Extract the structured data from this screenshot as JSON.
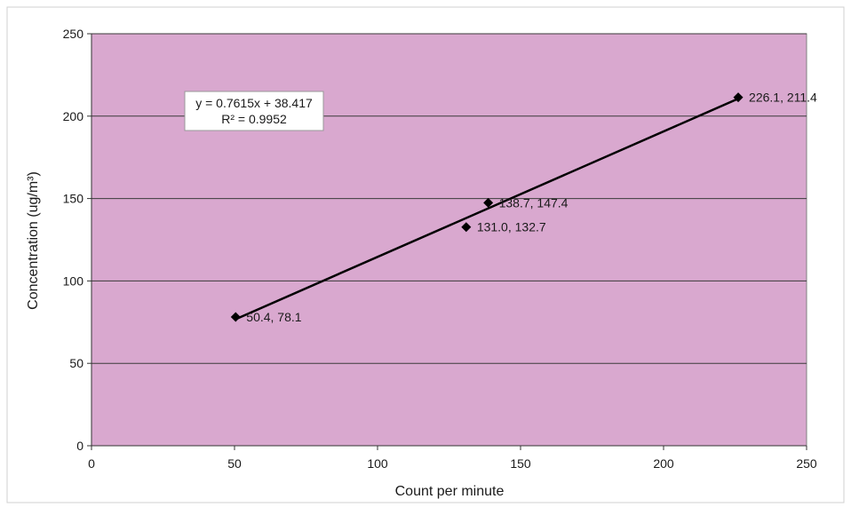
{
  "chart_data": {
    "type": "scatter",
    "title": "",
    "xlabel": "Count per minute",
    "ylabel": "Concentration (ug/m³)",
    "xlim": [
      0,
      250
    ],
    "ylim": [
      0,
      250
    ],
    "x_ticks": [
      0,
      50,
      100,
      150,
      200,
      250
    ],
    "y_ticks": [
      0,
      50,
      100,
      150,
      200,
      250
    ],
    "grid": "horizontal",
    "legend": "none",
    "plot_background": "#d9a8cf",
    "marker_color": "#000000",
    "series": [
      {
        "points": [
          {
            "x": 50.4,
            "y": 78.1,
            "label": "50.4, 78.1"
          },
          {
            "x": 131.0,
            "y": 132.7,
            "label": "131.0, 132.7"
          },
          {
            "x": 138.7,
            "y": 147.4,
            "label": "138.7, 147.4"
          },
          {
            "x": 226.1,
            "y": 211.4,
            "label": "226.1, 211.4"
          }
        ]
      }
    ],
    "trendline": {
      "type": "linear",
      "slope": 0.7615,
      "intercept": 38.417,
      "x_range": [
        50.4,
        226.1
      ],
      "equation": "y = 0.7615x + 38.417",
      "r_squared": "R² = 0.9952"
    }
  }
}
